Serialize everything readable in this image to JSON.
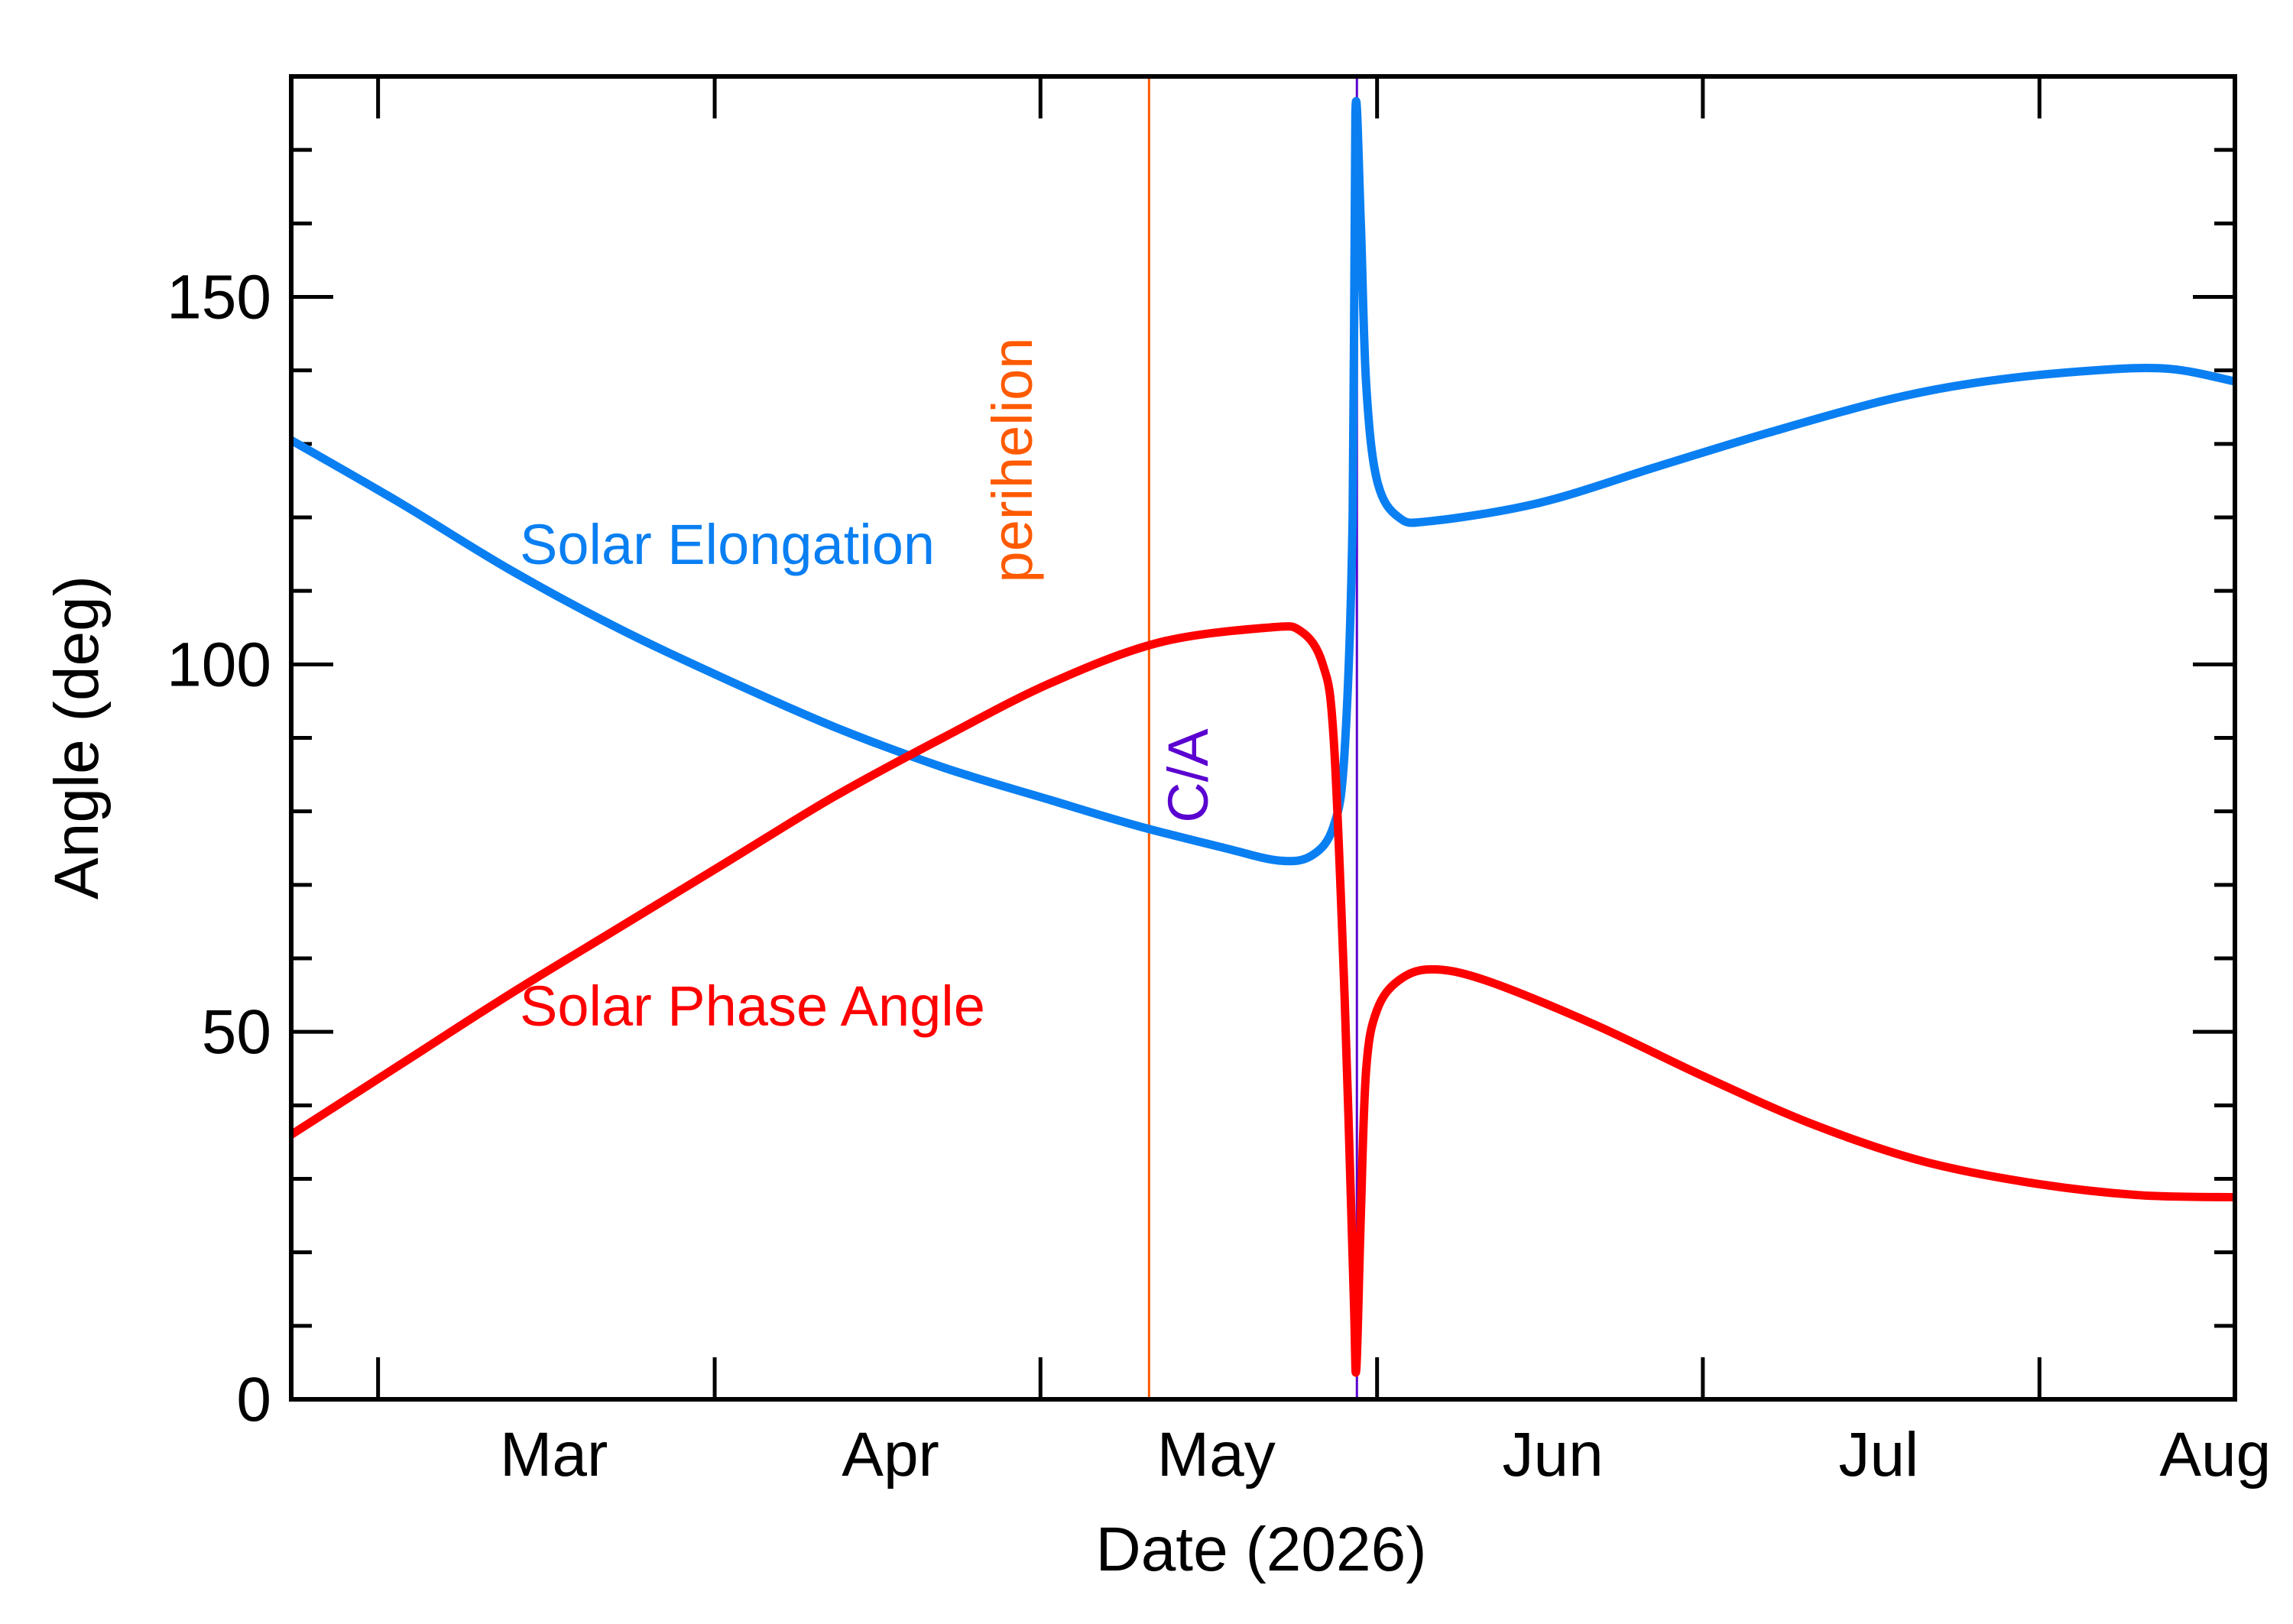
{
  "chart_data": {
    "type": "line",
    "xlabel": "Date (2026)",
    "ylabel": "Angle (deg)",
    "xlim": [
      "2026-02-04",
      "2026-08-02"
    ],
    "ylim": [
      0,
      180
    ],
    "yticks": [
      0,
      50,
      100,
      150
    ],
    "yticklabels": [
      "0",
      "50",
      "100",
      "150"
    ],
    "xticks": [
      "2026-02-12",
      "2026-03-15",
      "2026-04-14",
      "2026-05-15",
      "2026-06-14",
      "2026-07-15"
    ],
    "xticklabels": [
      "Mar",
      "Apr",
      "May",
      "Jun",
      "Jul",
      "Aug"
    ],
    "grid": false,
    "legend": "none",
    "colors": {
      "solar_elongation": "#0a7ff2",
      "solar_phase_angle": "#ff0000",
      "perihelion": "#ff5a00",
      "closest_approach": "#5a00d0",
      "axes": "#000000"
    },
    "series": [
      {
        "name": "Solar Elongation",
        "color": "#0a7ff2",
        "points": [
          [
            "2026-02-04",
            130.5
          ],
          [
            "2026-02-14",
            122.0
          ],
          [
            "2026-02-24",
            113.0
          ],
          [
            "2026-03-06",
            105.0
          ],
          [
            "2026-03-16",
            98.0
          ],
          [
            "2026-03-26",
            91.5
          ],
          [
            "2026-04-05",
            86.0
          ],
          [
            "2026-04-15",
            81.5
          ],
          [
            "2026-04-23",
            78.0
          ],
          [
            "2026-05-01",
            75.0
          ],
          [
            "2026-05-06",
            73.3
          ],
          [
            "2026-05-09",
            74.0
          ],
          [
            "2026-05-11",
            78.0
          ],
          [
            "2026-05-12",
            88.0
          ],
          [
            "2026-05-12T18:00",
            120.0
          ],
          [
            "2026-05-13",
            175.0
          ],
          [
            "2026-05-13T12:00",
            160.0
          ],
          [
            "2026-05-14",
            138.0
          ],
          [
            "2026-05-15",
            125.0
          ],
          [
            "2026-05-17",
            120.0
          ],
          [
            "2026-05-20",
            119.5
          ],
          [
            "2026-05-30",
            122.0
          ],
          [
            "2026-06-10",
            127.0
          ],
          [
            "2026-06-20",
            131.5
          ],
          [
            "2026-07-01",
            136.0
          ],
          [
            "2026-07-10",
            138.5
          ],
          [
            "2026-07-20",
            140.0
          ],
          [
            "2026-07-27",
            140.2
          ],
          [
            "2026-08-02",
            138.5
          ]
        ]
      },
      {
        "name": "Solar Phase Angle",
        "color": "#ff0000",
        "points": [
          [
            "2026-02-04",
            36.0
          ],
          [
            "2026-02-14",
            45.5
          ],
          [
            "2026-02-24",
            55.0
          ],
          [
            "2026-03-06",
            64.0
          ],
          [
            "2026-03-16",
            73.0
          ],
          [
            "2026-03-26",
            82.0
          ],
          [
            "2026-04-05",
            90.0
          ],
          [
            "2026-04-15",
            97.5
          ],
          [
            "2026-04-25",
            103.0
          ],
          [
            "2026-05-05",
            105.0
          ],
          [
            "2026-05-08",
            104.5
          ],
          [
            "2026-05-10",
            100.0
          ],
          [
            "2026-05-11",
            90.0
          ],
          [
            "2026-05-12",
            55.0
          ],
          [
            "2026-05-12T20:00",
            15.0
          ],
          [
            "2026-05-13T02:00",
            4.0
          ],
          [
            "2026-05-13T12:00",
            25.0
          ],
          [
            "2026-05-14",
            45.0
          ],
          [
            "2026-05-15",
            53.0
          ],
          [
            "2026-05-17",
            57.0
          ],
          [
            "2026-05-20",
            58.5
          ],
          [
            "2026-05-25",
            57.0
          ],
          [
            "2026-06-04",
            51.0
          ],
          [
            "2026-06-14",
            44.0
          ],
          [
            "2026-06-24",
            37.5
          ],
          [
            "2026-07-04",
            32.5
          ],
          [
            "2026-07-14",
            29.5
          ],
          [
            "2026-07-24",
            27.8
          ],
          [
            "2026-08-02",
            27.5
          ]
        ]
      }
    ],
    "annotations": [
      {
        "text": "Solar Elongation",
        "color": "#0a7ff2"
      },
      {
        "text": "Solar Phase Angle",
        "color": "#ff0000"
      },
      {
        "text": "perihelion",
        "color": "#ff5a00",
        "at": "2026-04-24"
      },
      {
        "text": "C/A",
        "color": "#5a00d0",
        "at": "2026-05-13"
      }
    ]
  }
}
